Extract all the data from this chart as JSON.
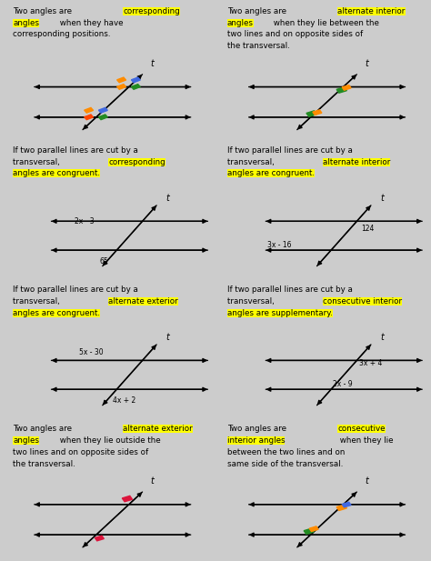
{
  "cells": [
    {
      "row": 0,
      "col": 0,
      "text_parts": [
        {
          "text": "Two angles are ",
          "highlight": false
        },
        {
          "text": "corresponding\nangles",
          "highlight": true
        },
        {
          "text": " when they have\ncorresponding positions.",
          "highlight": false
        }
      ],
      "diagram": "corresponding_def"
    },
    {
      "row": 0,
      "col": 1,
      "text_parts": [
        {
          "text": "Two angles are ",
          "highlight": false
        },
        {
          "text": "alternate interior\nangles",
          "highlight": true
        },
        {
          "text": " when they lie between the\ntwo lines and on opposite sides of\nthe transversal.",
          "highlight": false
        }
      ],
      "diagram": "alt_interior_def"
    },
    {
      "row": 1,
      "col": 0,
      "text_parts": [
        {
          "text": "If two parallel lines are cut by a\ntransversal, ",
          "highlight": false
        },
        {
          "text": "corresponding\nangles are congruent.",
          "highlight": true
        }
      ],
      "diagram": "corresponding_theorem",
      "labels": [
        "2x - 3",
        "65"
      ]
    },
    {
      "row": 1,
      "col": 1,
      "text_parts": [
        {
          "text": "If two parallel lines are cut by a\ntransversal, ",
          "highlight": false
        },
        {
          "text": "alternate interior\nangles are congruent.",
          "highlight": true
        }
      ],
      "diagram": "alt_interior_theorem",
      "labels": [
        "3x - 16",
        "124"
      ]
    },
    {
      "row": 2,
      "col": 0,
      "text_parts": [
        {
          "text": "If two parallel lines are cut by a\ntransversal, ",
          "highlight": false
        },
        {
          "text": "alternate exterior\nangles are congruent.",
          "highlight": true
        }
      ],
      "diagram": "alt_exterior_theorem",
      "labels": [
        "5x - 30",
        "4x + 2"
      ]
    },
    {
      "row": 2,
      "col": 1,
      "text_parts": [
        {
          "text": "If two parallel lines are cut by a\ntransversal, ",
          "highlight": false
        },
        {
          "text": "consecutive interior\nangles are supplementary.",
          "highlight": true
        }
      ],
      "diagram": "consec_interior_theorem",
      "labels": [
        "3x + 4",
        "2x - 9"
      ]
    },
    {
      "row": 3,
      "col": 0,
      "text_parts": [
        {
          "text": "Two angles are ",
          "highlight": false
        },
        {
          "text": "alternate exterior\nangles",
          "highlight": true
        },
        {
          "text": " when they lie outside the\ntwo lines and on opposite sides of\nthe transversal.",
          "highlight": false
        }
      ],
      "diagram": "alt_exterior_def"
    },
    {
      "row": 3,
      "col": 1,
      "text_parts": [
        {
          "text": "Two angles are ",
          "highlight": false
        },
        {
          "text": "consecutive\ninterior angles",
          "highlight": true
        },
        {
          "text": " when they lie\nbetween the two lines and on\nsame side of the transversal.",
          "highlight": false
        }
      ],
      "diagram": "consec_interior_def"
    }
  ],
  "highlight_color": "#FFFF00",
  "text_color": "#222222",
  "bg_color": "#FFFFFF",
  "border_color": "#AAAAAA",
  "grid_rows": 4,
  "grid_cols": 2,
  "fig_width": 4.74,
  "fig_height": 6.17
}
